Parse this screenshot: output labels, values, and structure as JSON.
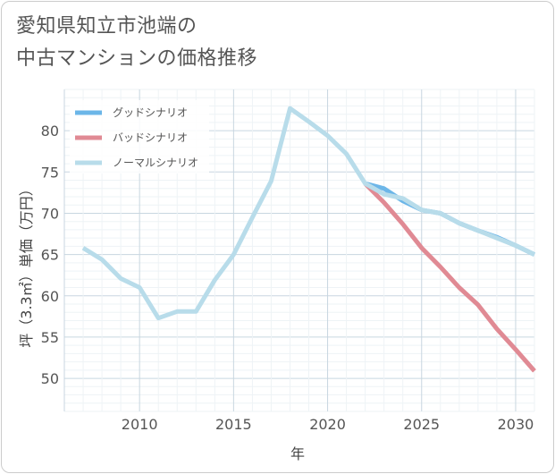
{
  "title_line1": "愛知県知立市池端の",
  "title_line2": "中古マンションの価格推移",
  "chart_data": {
    "type": "line",
    "title": "愛知県知立市池端の中古マンションの価格推移",
    "xlabel": "年",
    "ylabel": "坪（3.3㎡）単価（万円）",
    "xlim": [
      2006,
      2031
    ],
    "ylim": [
      46,
      85
    ],
    "xticks": [
      2010,
      2015,
      2020,
      2025,
      2030
    ],
    "yticks": [
      50,
      55,
      60,
      65,
      70,
      75,
      80
    ],
    "legend_position": "top-left",
    "series": [
      {
        "name": "グッドシナリオ",
        "color": "#6cb6e8",
        "x": [
          2022,
          2023,
          2024,
          2025,
          2026,
          2027,
          2028,
          2029,
          2030,
          2031
        ],
        "values": [
          73.6,
          73.0,
          71.5,
          70.4,
          70.0,
          68.8,
          67.9,
          67.1,
          66.1,
          65.0
        ]
      },
      {
        "name": "バッドシナリオ",
        "color": "#e08a94",
        "x": [
          2022,
          2023,
          2024,
          2025,
          2026,
          2027,
          2028,
          2029,
          2030,
          2031
        ],
        "values": [
          73.6,
          71.3,
          68.7,
          65.8,
          63.5,
          61.0,
          58.9,
          56.0,
          53.5,
          50.9
        ]
      },
      {
        "name": "ノーマルシナリオ",
        "color": "#b8dcea",
        "x": [
          2007,
          2008,
          2009,
          2010,
          2011,
          2012,
          2013,
          2014,
          2015,
          2016,
          2017,
          2018,
          2019,
          2020,
          2021,
          2022,
          2023,
          2024,
          2025,
          2026,
          2027,
          2028,
          2029,
          2030,
          2031
        ],
        "values": [
          65.8,
          64.4,
          62.1,
          61.0,
          57.3,
          58.1,
          58.1,
          61.9,
          65.0,
          69.5,
          73.9,
          82.7,
          81.1,
          79.4,
          77.2,
          73.6,
          72.3,
          71.8,
          70.4,
          70.0,
          68.8,
          67.9,
          67.0,
          66.1,
          65.0
        ]
      }
    ]
  }
}
